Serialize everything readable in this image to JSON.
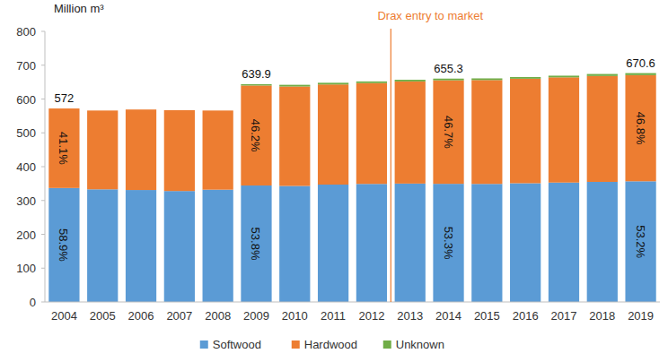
{
  "chart_data": {
    "type": "bar",
    "stacked": true,
    "grid": false,
    "legend": "bottom",
    "y_label": "Million m³",
    "categories": [
      "2004",
      "2005",
      "2006",
      "2007",
      "2008",
      "2009",
      "2010",
      "2011",
      "2012",
      "2013",
      "2014",
      "2015",
      "2016",
      "2017",
      "2018",
      "2019"
    ],
    "series": [
      {
        "name": "Softwood",
        "color": "#5b9bd5",
        "values": [
          336.9,
          333,
          331,
          328,
          332,
          344.3,
          343,
          347,
          349,
          350,
          349.3,
          349,
          351,
          353,
          355,
          356.8
        ]
      },
      {
        "name": "Hardwood",
        "color": "#ed7d31",
        "values": [
          235.1,
          233,
          238,
          239,
          234,
          295.6,
          294,
          296,
          298,
          302,
          306.0,
          307,
          309,
          311,
          313,
          313.8
        ]
      },
      {
        "name": "Unknown",
        "color": "#70ad47",
        "values": [
          0,
          0,
          0,
          0,
          0,
          4,
          5,
          5,
          5,
          5,
          5,
          5,
          5,
          5,
          6,
          6
        ]
      }
    ],
    "ylim": [
      0,
      800
    ],
    "yticks": [
      0,
      100,
      200,
      300,
      400,
      500,
      600,
      700,
      800
    ],
    "annotations": [
      {
        "category": "2004",
        "series": "Softwood",
        "text": "58.9%"
      },
      {
        "category": "2004",
        "series": "Hardwood",
        "text": "41.1%"
      },
      {
        "category": "2009",
        "series": "Softwood",
        "text": "53.8%"
      },
      {
        "category": "2009",
        "series": "Hardwood",
        "text": "46.2%"
      },
      {
        "category": "2014",
        "series": "Softwood",
        "text": "53.3%"
      },
      {
        "category": "2014",
        "series": "Hardwood",
        "text": "46.7%"
      },
      {
        "category": "2019",
        "series": "Softwood",
        "text": "53.2%"
      },
      {
        "category": "2019",
        "series": "Hardwood",
        "text": "46.8%"
      },
      {
        "category": "2004",
        "text": "572"
      },
      {
        "category": "2009",
        "text": "639.9"
      },
      {
        "category": "2014",
        "text": "655.3"
      },
      {
        "category": "2019",
        "text": "670.6"
      }
    ],
    "vline": {
      "after": "2012",
      "label": "Drax entry to market",
      "color": "#ed7d31"
    }
  }
}
